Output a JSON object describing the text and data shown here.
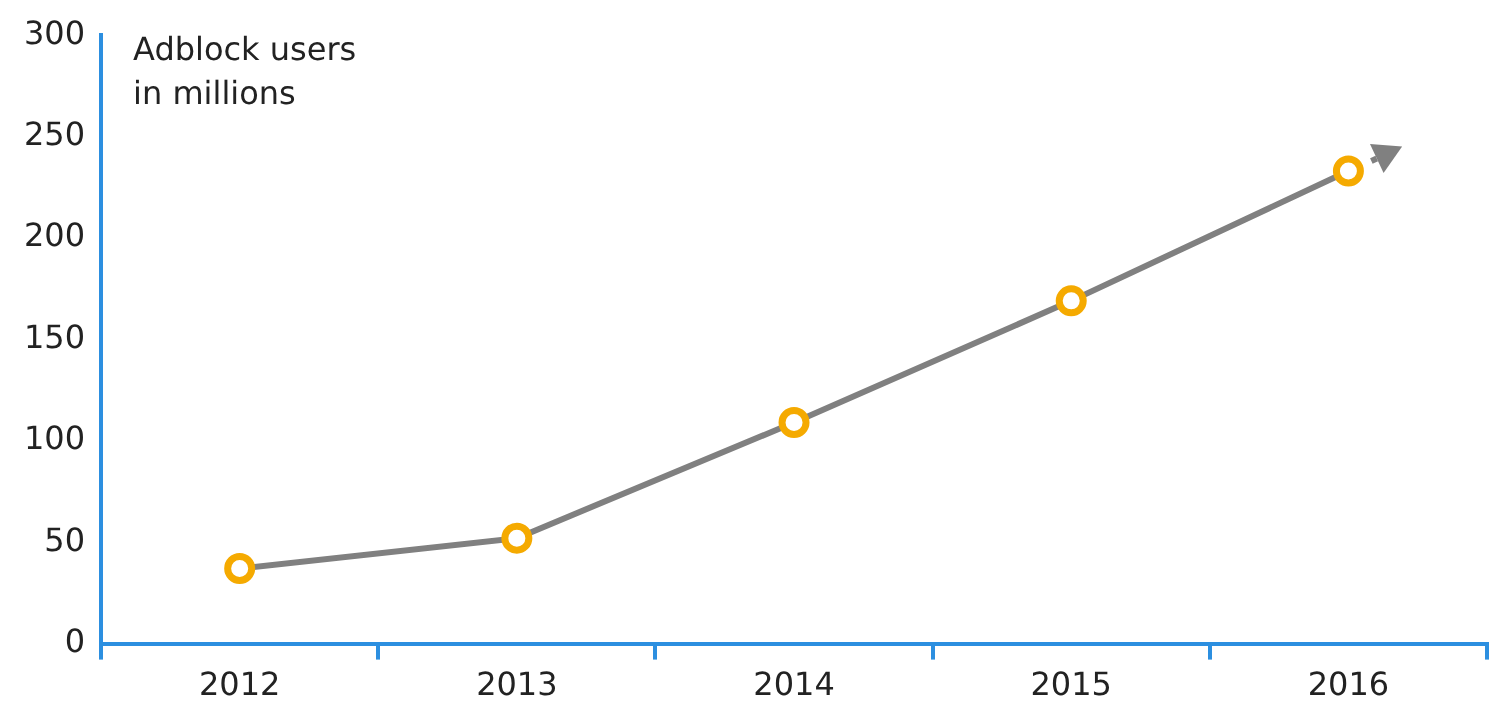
{
  "chart_data": {
    "type": "line",
    "ylabel": "Adblock users\nin millions",
    "categories": [
      "2012",
      "2013",
      "2014",
      "2015",
      "2016"
    ],
    "series": [
      {
        "color": "#808080",
        "values": [
          37,
          52,
          109,
          169,
          233
        ]
      }
    ],
    "marker": "circle",
    "ylim": [
      0,
      300
    ],
    "yticks": [
      0,
      50,
      100,
      150,
      200,
      250,
      300
    ],
    "grid": false,
    "legend": false
  }
}
